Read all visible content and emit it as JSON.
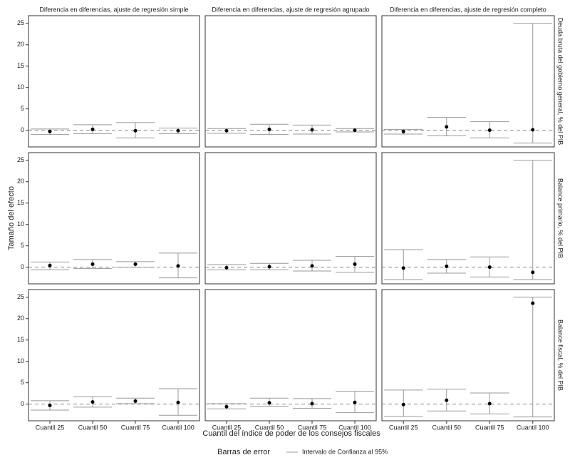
{
  "chart_data": {
    "type": "errorbar",
    "columns": [
      "Diferencia en diferencias, ajuste de regresión simple",
      "Diferencia en diferencias, ajuste de regresión agrupado",
      "Diferencia en diferencias, ajuste de regresión completo"
    ],
    "rows": [
      "Deuda bruta del gobierno general, % del PIB",
      "Balance primario, % del PIB",
      "Balance fiscal, % del PIB"
    ],
    "categories": [
      "Cuantil 25",
      "Cuantil 50",
      "Cuantil 75",
      "Cuantil 100"
    ],
    "y_label": "Tamaño del efecto",
    "x_label": "Cuantil del índice de poder de los consejos fiscales",
    "legend": {
      "title": "Barras de error",
      "label": "Intervalo de Confianza al 95%"
    },
    "ylim": [
      -3.9,
      26.8
    ],
    "yticks": [
      0,
      5,
      10,
      15,
      20,
      25
    ],
    "ref_line": 0,
    "point_color": "#000000",
    "bar_color": "#999999",
    "ref_color": "#888888",
    "panels": [
      {
        "values": [
          -0.3,
          0.2,
          -0.1,
          -0.1
        ],
        "lower": [
          -1,
          -0.8,
          -1.8,
          -0.8
        ],
        "upper": [
          0.3,
          1.3,
          1.8,
          0.5
        ]
      },
      {
        "values": [
          -0.1,
          0.2,
          0.1,
          0
        ],
        "lower": [
          -0.7,
          -1,
          -0.9,
          -0.4
        ],
        "upper": [
          0.4,
          1.4,
          1.2,
          0.4
        ]
      },
      {
        "values": [
          -0.3,
          0.8,
          0,
          0.1
        ],
        "lower": [
          -0.9,
          -1.3,
          -1.8,
          -3
        ],
        "upper": [
          0.2,
          3,
          2,
          25
        ]
      },
      {
        "values": [
          0.4,
          0.7,
          0.7,
          0.3
        ],
        "lower": [
          -0.6,
          -0.3,
          0,
          -2.5
        ],
        "upper": [
          1.2,
          1.8,
          1.3,
          3.3
        ]
      },
      {
        "values": [
          -0.1,
          0.1,
          0.3,
          0.7
        ],
        "lower": [
          -0.6,
          -0.6,
          -0.9,
          -1.2
        ],
        "upper": [
          0.6,
          0.9,
          1.6,
          2.5
        ]
      },
      {
        "values": [
          -0.2,
          0.2,
          0,
          -1.2
        ],
        "lower": [
          -2.9,
          -1.4,
          -2.3,
          -2.9
        ],
        "upper": [
          4.1,
          1.8,
          2.4,
          25
        ]
      },
      {
        "values": [
          -0.3,
          0.5,
          0.7,
          0.4
        ],
        "lower": [
          -1.4,
          -0.7,
          0.1,
          -2.6
        ],
        "upper": [
          0.8,
          1.7,
          1.4,
          3.6
        ]
      },
      {
        "values": [
          -0.6,
          0.3,
          0.1,
          0.4
        ],
        "lower": [
          -1.1,
          -0.5,
          -1,
          -2
        ],
        "upper": [
          0.1,
          1.4,
          1.3,
          3
        ]
      },
      {
        "values": [
          -0.1,
          0.9,
          0.1,
          23.6
        ],
        "lower": [
          -2.9,
          -1.6,
          -2.3,
          -3
        ],
        "upper": [
          3.3,
          3.5,
          2.6,
          25
        ]
      }
    ]
  }
}
